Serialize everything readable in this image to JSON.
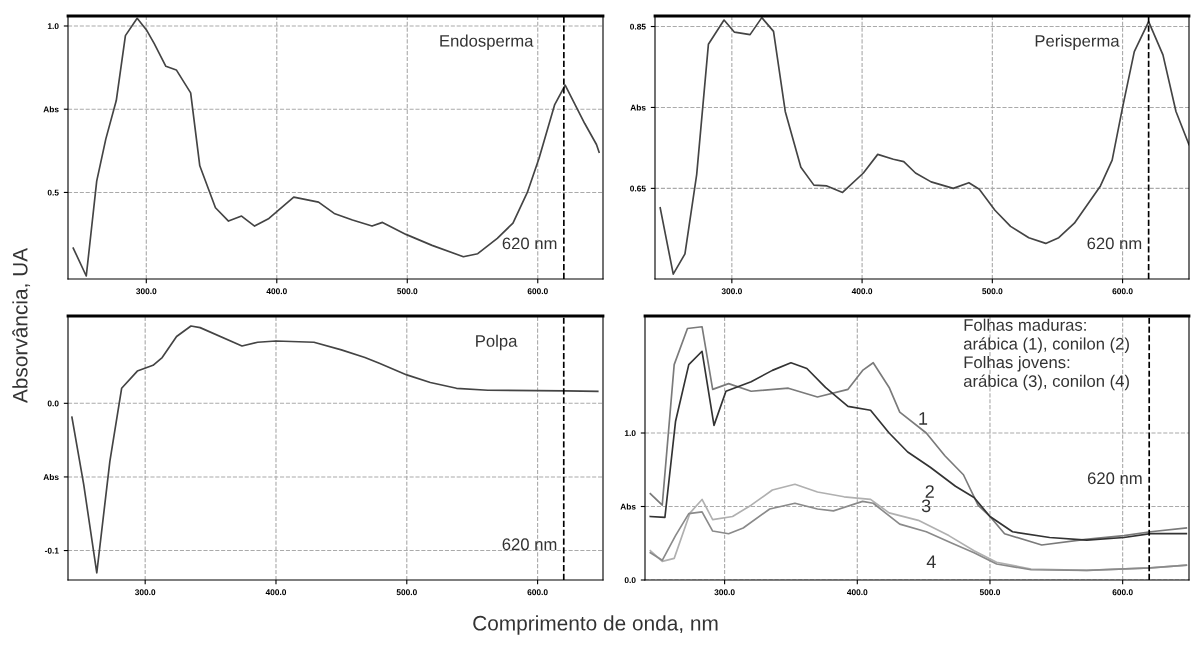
{
  "chart_data": [
    {
      "type": "line",
      "title": "Endosperma",
      "ylabel": "Absorvância, UA",
      "xlim": [
        240,
        650
      ],
      "ylim": [
        0.24,
        1.03
      ],
      "xticks": [
        {
          "value": 300,
          "label": "300.0"
        },
        {
          "value": 400,
          "label": "400.0"
        },
        {
          "value": 500,
          "label": "500.0"
        },
        {
          "value": 600,
          "label": "600.0"
        }
      ],
      "yticks": [
        0.5,
        {
          "value": 0.75,
          "label": "Abs"
        },
        {
          "value": 1,
          "label": "1.0"
        }
      ],
      "grid": true,
      "line_style": "solid",
      "marker": "none",
      "ref_lines": [
        {
          "axis": "x",
          "value": 620,
          "label": "620 nm",
          "color": "#000000",
          "line_style": "dashed"
        }
      ],
      "series": [
        {
          "color": "#444444",
          "x": [
            244,
            254,
            262,
            269,
            277,
            284,
            293,
            300,
            306,
            315,
            323,
            334,
            341,
            353,
            363,
            373,
            383,
            394,
            413,
            432,
            444,
            458,
            473,
            481,
            499,
            519,
            543,
            554,
            569,
            581,
            592,
            601,
            613,
            621,
            636,
            645,
            647
          ],
          "values": [
            0.333,
            0.249,
            0.534,
            0.661,
            0.776,
            0.971,
            1.023,
            0.989,
            0.948,
            0.879,
            0.868,
            0.799,
            0.58,
            0.454,
            0.414,
            0.429,
            0.399,
            0.422,
            0.486,
            0.471,
            0.437,
            0.417,
            0.399,
            0.41,
            0.374,
            0.341,
            0.307,
            0.316,
            0.362,
            0.408,
            0.5,
            0.603,
            0.764,
            0.822,
            0.707,
            0.644,
            0.621
          ]
        }
      ]
    },
    {
      "type": "line",
      "title": "Perisperma",
      "xlim": [
        241,
        651
      ],
      "ylim": [
        0.538,
        0.863
      ],
      "xticks": [
        {
          "value": 300,
          "label": "300.0"
        },
        {
          "value": 400,
          "label": "400.0"
        },
        {
          "value": 500,
          "label": "500.0"
        },
        {
          "value": 600,
          "label": "600.0"
        }
      ],
      "yticks": [
        0.65,
        {
          "value": 0.75,
          "label": "Abs"
        },
        0.85
      ],
      "grid": true,
      "line_style": "solid",
      "marker": "none",
      "ref_lines": [
        {
          "axis": "x",
          "value": 620,
          "label": "620 nm",
          "color": "#000000",
          "line_style": "dashed"
        }
      ],
      "series": [
        {
          "color": "#444444",
          "x": [
            245,
            255,
            264,
            273,
            282,
            294,
            302,
            314,
            323,
            332,
            341,
            353,
            363,
            373,
            385,
            401,
            412,
            424,
            432,
            441,
            453,
            470,
            482,
            490,
            502,
            514,
            528,
            541,
            551,
            563,
            583,
            592,
            600,
            609,
            620,
            631,
            641,
            651
          ],
          "values": [
            0.626,
            0.544,
            0.569,
            0.667,
            0.828,
            0.858,
            0.843,
            0.84,
            0.861,
            0.844,
            0.745,
            0.676,
            0.654,
            0.653,
            0.645,
            0.669,
            0.692,
            0.686,
            0.683,
            0.669,
            0.658,
            0.65,
            0.657,
            0.649,
            0.623,
            0.603,
            0.589,
            0.582,
            0.589,
            0.607,
            0.653,
            0.685,
            0.75,
            0.819,
            0.856,
            0.815,
            0.745,
            0.704
          ]
        }
      ]
    },
    {
      "type": "line",
      "title": "Polpa",
      "xlabel": "Comprimento de onda, nm",
      "xlim": [
        241,
        650
      ],
      "ylim": [
        -0.12,
        0.0593
      ],
      "xticks": [
        {
          "value": 300,
          "label": "300.0"
        },
        {
          "value": 400,
          "label": "400.0"
        },
        {
          "value": 500,
          "label": "500.0"
        },
        {
          "value": 600,
          "label": "600.0"
        }
      ],
      "yticks": [
        -0.1,
        {
          "value": -0.05,
          "label": "Abs"
        },
        {
          "value": 0,
          "label": "0.0"
        }
      ],
      "grid": true,
      "line_style": "solid",
      "marker": "none",
      "ref_lines": [
        {
          "axis": "x",
          "value": 620,
          "label": "620 nm",
          "color": "#000000",
          "line_style": "dashed"
        }
      ],
      "series": [
        {
          "color": "#444444",
          "x": [
            244,
            253,
            263,
            273,
            282,
            294,
            306,
            313,
            324,
            335,
            342,
            374,
            386,
            400,
            429,
            450,
            468,
            479,
            500,
            518,
            538,
            562,
            621,
            646
          ],
          "values": [
            -0.0094,
            -0.0551,
            -0.1151,
            -0.0394,
            0.0102,
            0.0219,
            0.0258,
            0.0311,
            0.0454,
            0.0525,
            0.0514,
            0.0389,
            0.0415,
            0.0423,
            0.0415,
            0.0363,
            0.0311,
            0.0272,
            0.0193,
            0.0141,
            0.0102,
            0.0089,
            0.0084,
            0.0081
          ]
        }
      ]
    },
    {
      "type": "line",
      "xlim": [
        240,
        650
      ],
      "ylim": [
        0.0,
        1.796
      ],
      "xticks": [
        {
          "value": 300,
          "label": "300.0"
        },
        {
          "value": 400,
          "label": "400.0"
        },
        {
          "value": 500,
          "label": "500.0"
        },
        {
          "value": 600,
          "label": "600.0"
        }
      ],
      "yticks": [
        {
          "value": 0,
          "label": "0.0"
        },
        {
          "value": 0.5,
          "label": "Abs"
        },
        {
          "value": 1,
          "label": "1.0"
        }
      ],
      "grid": true,
      "line_style": "solid",
      "marker": "none",
      "ref_lines": [
        {
          "axis": "x",
          "value": 620,
          "label": "620 nm",
          "color": "#000000",
          "line_style": "dashed"
        }
      ],
      "annotations": [
        "Folhas maduras:\narábica (1), conilon (2)\nFolhas jovens:\narábica (3), conilon (4)",
        {
          "text": "1",
          "x": 452,
          "y": 1.0
        },
        {
          "text": "2",
          "x": 455,
          "y": 0.767
        },
        {
          "text": "3",
          "x": 446,
          "y": 0.406
        },
        {
          "text": "4",
          "x": 452,
          "y": 0.328
        }
      ],
      "series": [
        {
          "color": "#7a7a7a",
          "x": [
            244,
            253,
            262,
            272,
            283,
            291,
            303,
            320,
            348,
            370,
            393,
            404,
            412,
            424,
            432,
            452,
            466,
            480,
            491,
            500,
            511,
            539,
            572,
            601,
            621,
            648
          ],
          "values": [
            0.587,
            0.509,
            1.465,
            1.711,
            1.723,
            1.297,
            1.336,
            1.284,
            1.305,
            1.245,
            1.297,
            1.426,
            1.478,
            1.31,
            1.142,
            1.0,
            0.845,
            0.716,
            0.509,
            0.432,
            0.315,
            0.238,
            0.276,
            0.302,
            0.328,
            0.354
          ]
        },
        {
          "color": "#333333",
          "x": [
            244,
            255,
            263,
            273,
            283,
            292,
            301,
            320,
            336,
            350,
            362,
            376,
            393,
            410,
            424,
            438,
            455,
            474,
            488,
            500,
            517,
            545,
            573,
            601,
            621,
            648
          ],
          "values": [
            0.432,
            0.426,
            1.078,
            1.465,
            1.556,
            1.052,
            1.284,
            1.349,
            1.426,
            1.478,
            1.439,
            1.31,
            1.181,
            1.155,
            1.0,
            0.871,
            0.767,
            0.638,
            0.561,
            0.432,
            0.328,
            0.289,
            0.271,
            0.289,
            0.315,
            0.315
          ]
        },
        {
          "color": "#b0b0b0",
          "x": [
            244,
            253,
            262,
            274,
            283,
            291,
            306,
            320,
            336,
            353,
            370,
            390,
            410,
            424,
            446,
            469,
            488,
            505,
            531,
            573,
            621,
            648
          ],
          "values": [
            0.199,
            0.127,
            0.147,
            0.457,
            0.548,
            0.411,
            0.432,
            0.509,
            0.612,
            0.651,
            0.599,
            0.566,
            0.548,
            0.457,
            0.406,
            0.302,
            0.199,
            0.121,
            0.075,
            0.065,
            0.083,
            0.101
          ]
        },
        {
          "color": "#8a8a8a",
          "x": [
            244,
            253,
            263,
            273,
            283,
            291,
            303,
            314,
            334,
            353,
            370,
            382,
            404,
            412,
            432,
            452,
            471,
            488,
            505,
            531,
            573,
            621,
            648
          ],
          "values": [
            0.186,
            0.134,
            0.302,
            0.452,
            0.463,
            0.333,
            0.315,
            0.354,
            0.483,
            0.522,
            0.483,
            0.47,
            0.535,
            0.522,
            0.38,
            0.328,
            0.251,
            0.186,
            0.109,
            0.07,
            0.065,
            0.083,
            0.101
          ]
        }
      ]
    }
  ]
}
